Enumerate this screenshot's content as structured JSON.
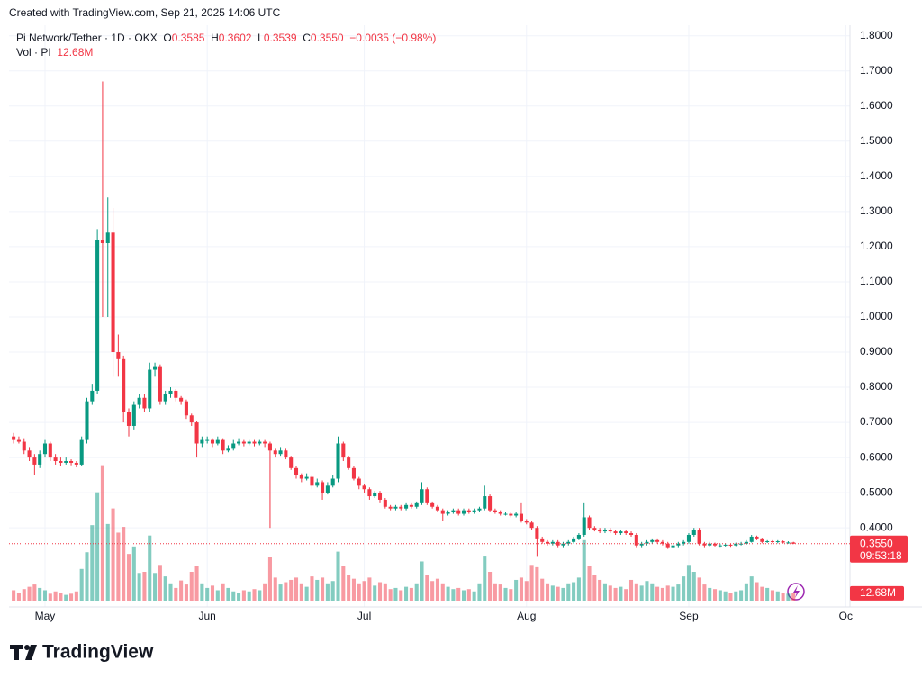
{
  "chart_data": {
    "type": "candlestick",
    "created": "Created with TradingView.com, Sep 21, 2025 14:06 UTC",
    "symbol": "Pi Network/Tether · 1D · OKX",
    "header": {
      "o_key": "O",
      "open": "0.3585",
      "h_key": "H",
      "high": "0.3602",
      "l_key": "L",
      "low": "0.3539",
      "c_key": "C",
      "close": "0.3550",
      "change": "−0.0035 (−0.98%)"
    },
    "volume_title": "Vol · PI",
    "volume_label": "12.68M",
    "last_price_label": "0.3550",
    "countdown": "09:53:18",
    "brand": "TradingView",
    "up_color": "#089981",
    "down_color": "#f23645",
    "grid": true,
    "ylim": [
      0.175,
      1.83
    ],
    "yticks": [
      {
        "value": 0.4,
        "label": "0.4000"
      },
      {
        "value": 0.5,
        "label": "0.5000"
      },
      {
        "value": 0.6,
        "label": "0.6000"
      },
      {
        "value": 0.7,
        "label": "0.7000"
      },
      {
        "value": 0.8,
        "label": "0.8000"
      },
      {
        "value": 0.9,
        "label": "0.9000"
      },
      {
        "value": 1.0,
        "label": "1.0000"
      },
      {
        "value": 1.1,
        "label": "1.1000"
      },
      {
        "value": 1.2,
        "label": "1.2000"
      },
      {
        "value": 1.3,
        "label": "1.3000"
      },
      {
        "value": 1.4,
        "label": "1.4000"
      },
      {
        "value": 1.5,
        "label": "1.5000"
      },
      {
        "value": 1.6,
        "label": "1.6000"
      },
      {
        "value": 1.7,
        "label": "1.7000"
      },
      {
        "value": 1.8,
        "label": "1.8000"
      }
    ],
    "xlim": [
      -0.88,
      159.8
    ],
    "xticks": [
      {
        "value": 6,
        "label": "May"
      },
      {
        "value": 37,
        "label": "Jun"
      },
      {
        "value": 67,
        "label": "Jul"
      },
      {
        "value": 98,
        "label": "Aug"
      },
      {
        "value": 129,
        "label": "Sep"
      },
      {
        "value": 159,
        "label": "Oc"
      }
    ],
    "vol_lim": [
      0,
      250
    ],
    "open": [
      0.66,
      0.65,
      0.645,
      0.62,
      0.6,
      0.58,
      0.61,
      0.64,
      0.6,
      0.59,
      0.585,
      0.59,
      0.585,
      0.58,
      0.65,
      0.76,
      0.79,
      1.22,
      1.21,
      1.24,
      0.9,
      0.88,
      0.73,
      0.69,
      0.75,
      0.77,
      0.74,
      0.85,
      0.86,
      0.76,
      0.78,
      0.79,
      0.77,
      0.76,
      0.72,
      0.7,
      0.64,
      0.65,
      0.65,
      0.64,
      0.65,
      0.62,
      0.625,
      0.64,
      0.645,
      0.64,
      0.645,
      0.64,
      0.645,
      0.64,
      0.62,
      0.61,
      0.62,
      0.6,
      0.57,
      0.55,
      0.54,
      0.545,
      0.52,
      0.53,
      0.5,
      0.52,
      0.54,
      0.64,
      0.6,
      0.57,
      0.54,
      0.52,
      0.51,
      0.49,
      0.5,
      0.48,
      0.46,
      0.455,
      0.46,
      0.455,
      0.465,
      0.46,
      0.47,
      0.51,
      0.47,
      0.46,
      0.45,
      0.44,
      0.445,
      0.45,
      0.44,
      0.45,
      0.445,
      0.45,
      0.455,
      0.49,
      0.45,
      0.445,
      0.44,
      0.44,
      0.435,
      0.44,
      0.42,
      0.415,
      0.4,
      0.37,
      0.36,
      0.355,
      0.36,
      0.35,
      0.355,
      0.36,
      0.37,
      0.38,
      0.43,
      0.4,
      0.395,
      0.39,
      0.395,
      0.39,
      0.385,
      0.39,
      0.385,
      0.38,
      0.35,
      0.355,
      0.36,
      0.365,
      0.36,
      0.355,
      0.345,
      0.35,
      0.355,
      0.36,
      0.38,
      0.395,
      0.355,
      0.35,
      0.355,
      0.35,
      0.35,
      0.352,
      0.35,
      0.355,
      0.355,
      0.36,
      0.375,
      0.37,
      0.36,
      0.362,
      0.36,
      0.362,
      0.358,
      0.3585
    ],
    "high": [
      0.67,
      0.66,
      0.655,
      0.63,
      0.61,
      0.62,
      0.65,
      0.645,
      0.61,
      0.6,
      0.6,
      0.595,
      0.59,
      0.66,
      0.77,
      0.81,
      1.25,
      1.67,
      1.34,
      1.31,
      0.95,
      0.89,
      0.74,
      0.76,
      0.78,
      0.78,
      0.87,
      0.87,
      0.865,
      0.79,
      0.8,
      0.795,
      0.775,
      0.765,
      0.725,
      0.705,
      0.66,
      0.66,
      0.655,
      0.66,
      0.655,
      0.635,
      0.65,
      0.655,
      0.65,
      0.65,
      0.65,
      0.65,
      0.65,
      0.645,
      0.625,
      0.63,
      0.625,
      0.605,
      0.575,
      0.555,
      0.555,
      0.55,
      0.54,
      0.535,
      0.53,
      0.55,
      0.66,
      0.645,
      0.605,
      0.575,
      0.545,
      0.525,
      0.515,
      0.505,
      0.505,
      0.485,
      0.465,
      0.465,
      0.465,
      0.47,
      0.47,
      0.475,
      0.53,
      0.515,
      0.475,
      0.465,
      0.455,
      0.45,
      0.455,
      0.455,
      0.455,
      0.455,
      0.455,
      0.46,
      0.52,
      0.495,
      0.455,
      0.45,
      0.445,
      0.445,
      0.445,
      0.47,
      0.425,
      0.42,
      0.405,
      0.375,
      0.365,
      0.365,
      0.365,
      0.36,
      0.365,
      0.375,
      0.385,
      0.47,
      0.435,
      0.405,
      0.4,
      0.4,
      0.4,
      0.395,
      0.395,
      0.395,
      0.39,
      0.385,
      0.36,
      0.365,
      0.37,
      0.37,
      0.365,
      0.36,
      0.355,
      0.36,
      0.365,
      0.385,
      0.4,
      0.4,
      0.36,
      0.36,
      0.358,
      0.355,
      0.356,
      0.355,
      0.358,
      0.36,
      0.365,
      0.38,
      0.378,
      0.372,
      0.365,
      0.365,
      0.365,
      0.364,
      0.362,
      0.3602
    ],
    "low": [
      0.64,
      0.64,
      0.61,
      0.59,
      0.55,
      0.57,
      0.6,
      0.59,
      0.58,
      0.575,
      0.58,
      0.578,
      0.572,
      0.575,
      0.64,
      0.75,
      0.78,
      1.0,
      1.0,
      0.83,
      0.83,
      0.7,
      0.66,
      0.68,
      0.74,
      0.73,
      0.73,
      0.83,
      0.75,
      0.75,
      0.77,
      0.76,
      0.75,
      0.71,
      0.69,
      0.6,
      0.63,
      0.64,
      0.63,
      0.635,
      0.61,
      0.615,
      0.62,
      0.635,
      0.632,
      0.635,
      0.632,
      0.635,
      0.63,
      0.4,
      0.6,
      0.605,
      0.595,
      0.565,
      0.54,
      0.53,
      0.535,
      0.51,
      0.515,
      0.48,
      0.495,
      0.515,
      0.53,
      0.59,
      0.565,
      0.535,
      0.51,
      0.5,
      0.48,
      0.485,
      0.47,
      0.455,
      0.45,
      0.45,
      0.45,
      0.45,
      0.455,
      0.455,
      0.465,
      0.465,
      0.455,
      0.445,
      0.42,
      0.435,
      0.44,
      0.435,
      0.435,
      0.44,
      0.44,
      0.445,
      0.45,
      0.445,
      0.44,
      0.435,
      0.435,
      0.43,
      0.43,
      0.415,
      0.41,
      0.395,
      0.32,
      0.355,
      0.35,
      0.35,
      0.345,
      0.345,
      0.35,
      0.355,
      0.365,
      0.375,
      0.395,
      0.39,
      0.385,
      0.385,
      0.385,
      0.38,
      0.38,
      0.38,
      0.375,
      0.345,
      0.345,
      0.35,
      0.355,
      0.355,
      0.35,
      0.34,
      0.34,
      0.345,
      0.35,
      0.355,
      0.375,
      0.35,
      0.345,
      0.347,
      0.347,
      0.346,
      0.347,
      0.346,
      0.348,
      0.35,
      0.352,
      0.358,
      0.365,
      0.356,
      0.357,
      0.357,
      0.356,
      0.355,
      0.355,
      0.3539
    ],
    "close": [
      0.65,
      0.645,
      0.62,
      0.6,
      0.58,
      0.61,
      0.64,
      0.6,
      0.59,
      0.585,
      0.59,
      0.585,
      0.58,
      0.65,
      0.76,
      0.79,
      1.22,
      1.21,
      1.24,
      0.9,
      0.88,
      0.73,
      0.69,
      0.75,
      0.77,
      0.74,
      0.85,
      0.86,
      0.76,
      0.78,
      0.79,
      0.77,
      0.76,
      0.72,
      0.7,
      0.64,
      0.65,
      0.65,
      0.64,
      0.65,
      0.62,
      0.625,
      0.64,
      0.645,
      0.64,
      0.645,
      0.64,
      0.645,
      0.64,
      0.62,
      0.61,
      0.62,
      0.6,
      0.57,
      0.55,
      0.54,
      0.545,
      0.52,
      0.53,
      0.5,
      0.52,
      0.54,
      0.64,
      0.6,
      0.57,
      0.54,
      0.52,
      0.51,
      0.49,
      0.5,
      0.48,
      0.46,
      0.455,
      0.46,
      0.455,
      0.465,
      0.46,
      0.47,
      0.51,
      0.47,
      0.46,
      0.45,
      0.44,
      0.445,
      0.45,
      0.44,
      0.45,
      0.445,
      0.45,
      0.455,
      0.49,
      0.45,
      0.445,
      0.44,
      0.44,
      0.435,
      0.44,
      0.42,
      0.415,
      0.4,
      0.37,
      0.36,
      0.355,
      0.36,
      0.35,
      0.355,
      0.36,
      0.37,
      0.38,
      0.43,
      0.4,
      0.395,
      0.39,
      0.395,
      0.39,
      0.385,
      0.39,
      0.385,
      0.38,
      0.35,
      0.355,
      0.36,
      0.365,
      0.36,
      0.355,
      0.345,
      0.35,
      0.355,
      0.36,
      0.38,
      0.395,
      0.355,
      0.35,
      0.355,
      0.35,
      0.35,
      0.352,
      0.35,
      0.355,
      0.355,
      0.36,
      0.375,
      0.37,
      0.36,
      0.362,
      0.36,
      0.362,
      0.358,
      0.3585,
      0.355
    ],
    "volume": [
      18,
      14,
      20,
      24,
      28,
      22,
      18,
      12,
      16,
      14,
      10,
      12,
      16,
      55,
      84,
      131,
      188,
      235,
      133,
      160,
      118,
      128,
      81,
      94,
      48,
      50,
      113,
      48,
      62,
      42,
      30,
      22,
      35,
      28,
      50,
      60,
      30,
      22,
      26,
      18,
      30,
      22,
      16,
      14,
      18,
      16,
      20,
      18,
      30,
      75,
      40,
      28,
      32,
      36,
      40,
      30,
      24,
      42,
      36,
      40,
      30,
      34,
      85,
      60,
      44,
      38,
      30,
      34,
      40,
      26,
      32,
      30,
      20,
      22,
      18,
      24,
      22,
      30,
      68,
      44,
      34,
      38,
      30,
      24,
      20,
      22,
      18,
      20,
      16,
      30,
      78,
      50,
      30,
      28,
      22,
      20,
      36,
      40,
      34,
      62,
      58,
      38,
      30,
      26,
      24,
      22,
      30,
      32,
      40,
      105,
      60,
      44,
      36,
      30,
      26,
      22,
      24,
      20,
      36,
      30,
      26,
      34,
      30,
      24,
      22,
      26,
      24,
      28,
      42,
      62,
      50,
      40,
      28,
      22,
      20,
      18,
      16,
      14,
      16,
      18,
      30,
      42,
      32,
      24,
      22,
      18,
      16,
      14,
      12,
      12.68
    ]
  }
}
